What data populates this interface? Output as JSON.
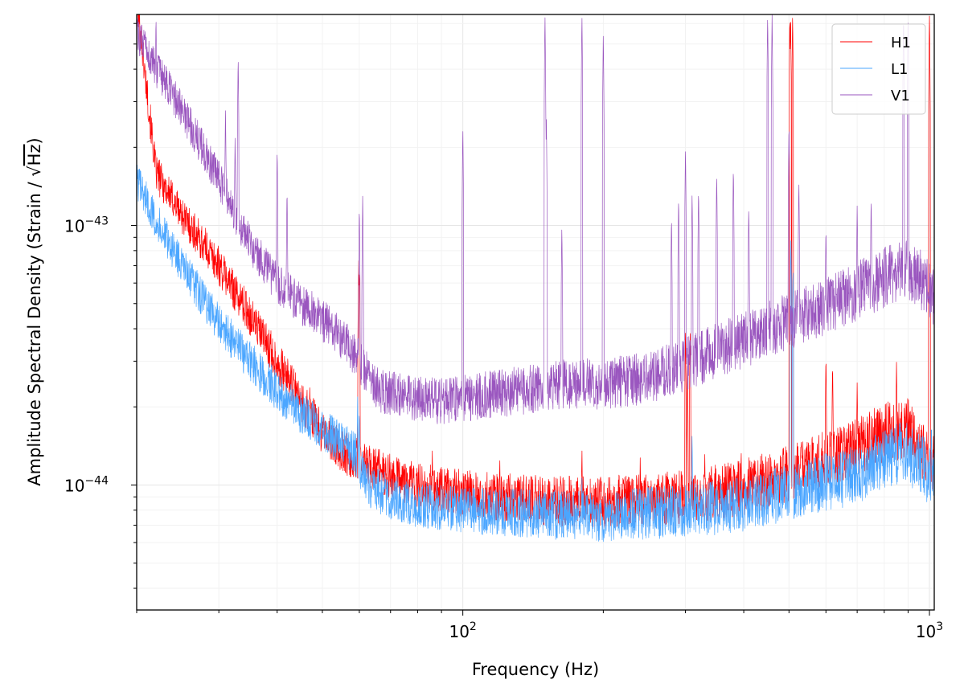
{
  "chart_data": {
    "type": "line",
    "title": "",
    "xlabel": "Frequency (Hz)",
    "ylabel": "Amplitude Spectral Density (Strain / √Hz)",
    "ylabel_prefix": "Amplitude Spectral Density (Strain / ",
    "ylabel_sqrt": "√",
    "ylabel_unit": "Hz",
    "ylabel_suffix": ")",
    "xscale": "log",
    "yscale": "log",
    "xlim": [
      20,
      1024
    ],
    "ylim": [
      3.3e-45,
      6.5e-43
    ],
    "grid": "on (major and minor)",
    "legend_position": "top-right",
    "x_ticks": [
      {
        "value": 100,
        "base": "10",
        "exp": "2"
      },
      {
        "value": 1000,
        "base": "10",
        "exp": "3"
      }
    ],
    "y_ticks": [
      {
        "value": 1e-44,
        "base": "10",
        "exp": "−44"
      },
      {
        "value": 1e-43,
        "base": "10",
        "exp": "−43"
      }
    ],
    "series": [
      {
        "name": "H1",
        "color": "#ff0000",
        "baseline": [
          [
            20,
            7.5e-43
          ],
          [
            22,
            1.6e-43
          ],
          [
            25,
            1.1e-43
          ],
          [
            30,
            7e-44
          ],
          [
            35,
            4.5e-44
          ],
          [
            40,
            3e-44
          ],
          [
            45,
            2.1e-44
          ],
          [
            50,
            1.6e-44
          ],
          [
            55,
            1.35e-44
          ],
          [
            60,
            1.25e-44
          ],
          [
            65,
            1.15e-44
          ],
          [
            70,
            1.08e-44
          ],
          [
            80,
            1e-44
          ],
          [
            100,
            9.3e-45
          ],
          [
            150,
            8.7e-45
          ],
          [
            200,
            8.6e-45
          ],
          [
            300,
            9e-45
          ],
          [
            400,
            9.8e-45
          ],
          [
            500,
            1.1e-44
          ],
          [
            600,
            1.25e-44
          ],
          [
            700,
            1.4e-44
          ],
          [
            800,
            1.6e-44
          ],
          [
            900,
            1.65e-44
          ],
          [
            960,
            1.4e-44
          ],
          [
            1024,
            1.2e-44
          ]
        ],
        "lines": [
          [
            31,
            3e-44
          ],
          [
            35,
            2.4e-44
          ],
          [
            40,
            3.2e-44
          ],
          [
            47,
            2.5e-44
          ],
          [
            59.8,
            7.5e-44
          ],
          [
            60,
            7e-44
          ],
          [
            86,
            1.4e-44
          ],
          [
            120,
            1.3e-44
          ],
          [
            180,
            1.4e-44
          ],
          [
            240,
            1.3e-44
          ],
          [
            300,
            4e-44
          ],
          [
            303,
            3e-44
          ],
          [
            307,
            4e-44
          ],
          [
            330,
            1.35e-44
          ],
          [
            395,
            1.35e-44
          ],
          [
            502,
            6.5e-43
          ],
          [
            504,
            6.5e-43
          ],
          [
            509,
            6.5e-43
          ],
          [
            600,
            3.2e-44
          ],
          [
            620,
            3e-44
          ],
          [
            700,
            2.5e-44
          ],
          [
            850,
            3e-44
          ],
          [
            1000,
            6.5e-43
          ]
        ]
      },
      {
        "name": "L1",
        "color": "#4ba6ff",
        "baseline": [
          [
            20,
            1.5e-43
          ],
          [
            22,
            1.05e-43
          ],
          [
            25,
            7e-44
          ],
          [
            30,
            4.2e-44
          ],
          [
            35,
            3e-44
          ],
          [
            40,
            2.3e-44
          ],
          [
            45,
            1.9e-44
          ],
          [
            50,
            1.65e-44
          ],
          [
            55,
            1.45e-44
          ],
          [
            59,
            1.3e-44
          ],
          [
            62,
            1.02e-44
          ],
          [
            65,
            9.6e-45
          ],
          [
            70,
            9e-45
          ],
          [
            80,
            8.4e-45
          ],
          [
            100,
            8e-45
          ],
          [
            150,
            7.7e-45
          ],
          [
            200,
            7.6e-45
          ],
          [
            300,
            7.9e-45
          ],
          [
            400,
            8.5e-45
          ],
          [
            500,
            9.3e-45
          ],
          [
            600,
            1.02e-44
          ],
          [
            700,
            1.1e-44
          ],
          [
            800,
            1.25e-44
          ],
          [
            880,
            1.35e-44
          ],
          [
            960,
            1.2e-44
          ],
          [
            1024,
            1.05e-44
          ]
        ],
        "lines": [
          [
            59.5,
            2.2e-44
          ],
          [
            60,
            2e-44
          ],
          [
            120,
            1e-44
          ],
          [
            180,
            1.1e-44
          ],
          [
            310,
            1.6e-44
          ],
          [
            505,
            9e-44
          ],
          [
            510,
            7e-44
          ],
          [
            1010,
            1.8e-44
          ]
        ]
      },
      {
        "name": "V1",
        "color": "#9a56bf",
        "baseline": [
          [
            20,
            5.5e-43
          ],
          [
            22,
            4e-43
          ],
          [
            25,
            2.8e-43
          ],
          [
            28,
            1.9e-43
          ],
          [
            30,
            1.5e-43
          ],
          [
            33,
            1.05e-43
          ],
          [
            35,
            8.5e-44
          ],
          [
            40,
            6e-44
          ],
          [
            45,
            5e-44
          ],
          [
            50,
            4.3e-44
          ],
          [
            55,
            3.7e-44
          ],
          [
            60,
            3e-44
          ],
          [
            63,
            2.6e-44
          ],
          [
            65,
            2.35e-44
          ],
          [
            70,
            2.25e-44
          ],
          [
            80,
            2.15e-44
          ],
          [
            90,
            2.1e-44
          ],
          [
            100,
            2.15e-44
          ],
          [
            130,
            2.3e-44
          ],
          [
            160,
            2.45e-44
          ],
          [
            200,
            2.45e-44
          ],
          [
            250,
            2.6e-44
          ],
          [
            300,
            2.9e-44
          ],
          [
            350,
            3.3e-44
          ],
          [
            400,
            3.6e-44
          ],
          [
            500,
            4.3e-44
          ],
          [
            600,
            4.9e-44
          ],
          [
            700,
            5.6e-44
          ],
          [
            800,
            6.3e-44
          ],
          [
            880,
            6.8e-44
          ],
          [
            950,
            6.2e-44
          ],
          [
            1024,
            5.4e-44
          ]
        ],
        "lines": [
          [
            22,
            6.5e-43
          ],
          [
            31,
            2.8e-43
          ],
          [
            33,
            4.5e-43
          ],
          [
            32.5,
            2.2e-43
          ],
          [
            40,
            2e-43
          ],
          [
            42,
            1.4e-43
          ],
          [
            60,
            1.2e-43
          ],
          [
            61,
            1.3e-43
          ],
          [
            100,
            2.4e-43
          ],
          [
            150,
            6.5e-43
          ],
          [
            151,
            2.6e-43
          ],
          [
            163,
            1e-43
          ],
          [
            180,
            6.5e-43
          ],
          [
            200,
            5.5e-43
          ],
          [
            280,
            1.1e-43
          ],
          [
            290,
            1.3e-43
          ],
          [
            300,
            2e-43
          ],
          [
            310,
            1.35e-43
          ],
          [
            320,
            1.4e-43
          ],
          [
            350,
            1.6e-43
          ],
          [
            380,
            1.7e-43
          ],
          [
            410,
            1.2e-43
          ],
          [
            450,
            6.5e-43
          ],
          [
            460,
            6.5e-43
          ],
          [
            500,
            2.5e-43
          ],
          [
            525,
            1.5e-43
          ],
          [
            600,
            1e-43
          ],
          [
            700,
            1.2e-43
          ],
          [
            750,
            1.3e-43
          ],
          [
            880,
            6.5e-43
          ],
          [
            900,
            6.5e-43
          ]
        ]
      }
    ]
  }
}
